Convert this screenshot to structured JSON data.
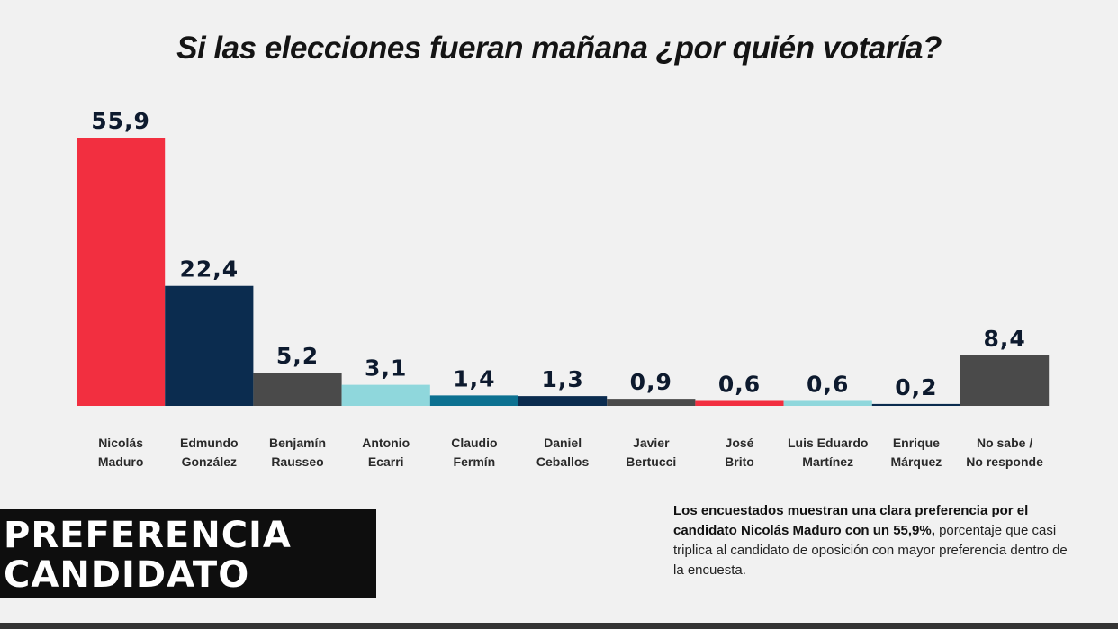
{
  "chart_data": {
    "type": "bar",
    "title": "Si las elecciones fueran mañana ¿por quién votaría?",
    "categories": [
      [
        "Nicolás",
        "Maduro"
      ],
      [
        "Edmundo",
        "González"
      ],
      [
        "Benjamín",
        "Rausseo"
      ],
      [
        "Antonio",
        "Ecarri"
      ],
      [
        "Claudio",
        "Fermín"
      ],
      [
        "Daniel",
        "Ceballos"
      ],
      [
        "Javier",
        "Bertucci"
      ],
      [
        "José",
        "Brito"
      ],
      [
        "Luis Eduardo",
        "Martínez"
      ],
      [
        "Enrique",
        "Márquez"
      ],
      [
        "No sabe /",
        "No responde"
      ]
    ],
    "values": [
      55.9,
      22.4,
      5.2,
      3.1,
      1.4,
      1.3,
      0.9,
      0.6,
      0.6,
      0.2,
      8.4
    ],
    "value_labels": [
      "55,9",
      "22,4",
      "5,2",
      "3,1",
      "1,4",
      "1,3",
      "0,9",
      "0,6",
      "0,6",
      "0,2",
      "8,4"
    ],
    "colors": [
      "#f22f40",
      "#0b2c4f",
      "#4a4a4a",
      "#8fd7dc",
      "#0c7191",
      "#0b2c4f",
      "#4a4a4a",
      "#f22f40",
      "#8fd7dc",
      "#0b2c4f",
      "#4a4a4a"
    ],
    "xlabel": "",
    "ylabel": "",
    "ylim": [
      0,
      56
    ],
    "grid": false,
    "legend": "none"
  },
  "badge": {
    "line1": "PREFERENCIA",
    "line2": "CANDIDATO"
  },
  "summary": {
    "bold": "Los encuestados muestran una clara preferencia por el candidato Nicolás Maduro con un 55,9%,",
    "normal": "porcentaje que casi triplica al candidato de oposición con mayor preferencia dentro de la encuesta."
  }
}
